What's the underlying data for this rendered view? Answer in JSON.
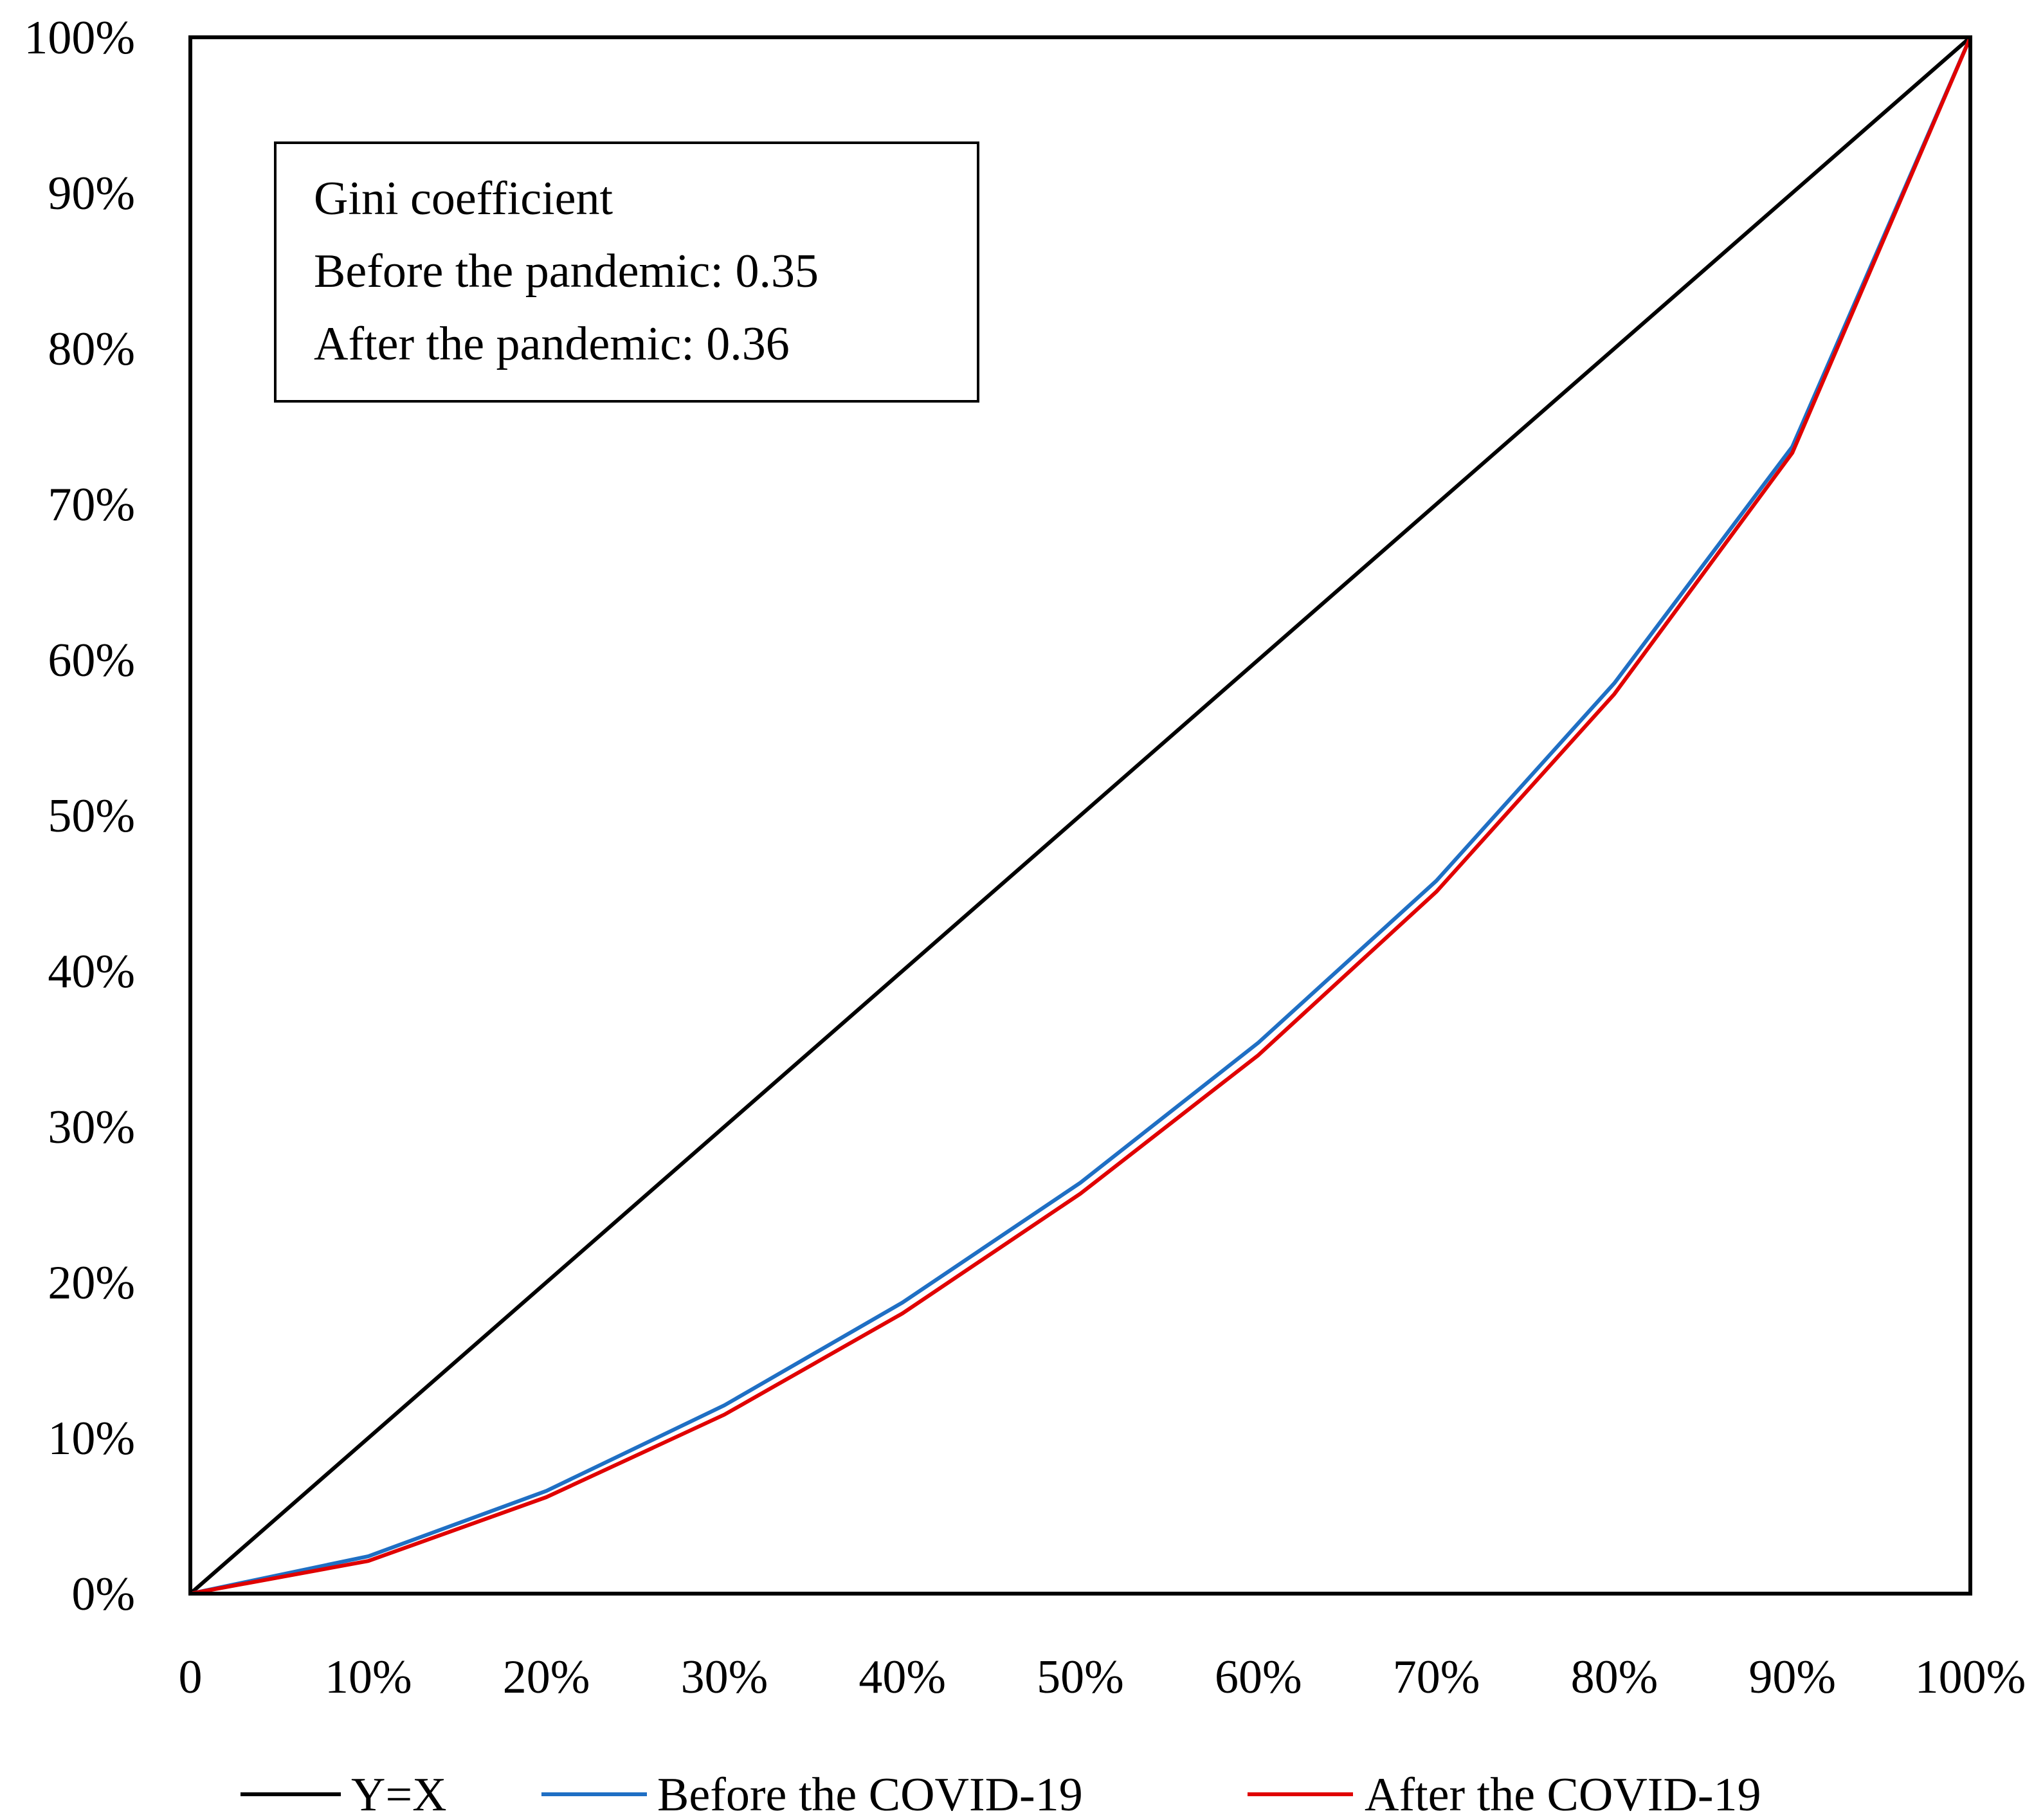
{
  "chart_data": {
    "type": "line",
    "title": "",
    "xlabel": "",
    "ylabel": "",
    "x": [
      0,
      0.1,
      0.2,
      0.3,
      0.4,
      0.5,
      0.6,
      0.7,
      0.8,
      0.9,
      1.0
    ],
    "x_tick_labels": [
      "0",
      "10%",
      "20%",
      "30%",
      "40%",
      "50%",
      "60%",
      "70%",
      "80%",
      "90%",
      "100%"
    ],
    "y_tick_labels": [
      "0%",
      "10%",
      "20%",
      "30%",
      "40%",
      "50%",
      "60%",
      "70%",
      "80%",
      "90%",
      "100%"
    ],
    "xlim": [
      0,
      1
    ],
    "ylim": [
      0,
      1
    ],
    "grid": false,
    "legend_position": "bottom",
    "series": [
      {
        "name": "Y=X",
        "color": "#000000",
        "values": [
          0,
          0.1,
          0.2,
          0.3,
          0.4,
          0.5,
          0.6,
          0.7,
          0.8,
          0.9,
          1.0
        ]
      },
      {
        "name": "Before the COVID-19",
        "color": "#1f6fc4",
        "values": [
          0,
          0.024,
          0.066,
          0.121,
          0.187,
          0.264,
          0.354,
          0.458,
          0.585,
          0.737,
          1.0
        ]
      },
      {
        "name": "After the COVID-19",
        "color": "#e00000",
        "values": [
          0,
          0.021,
          0.062,
          0.115,
          0.18,
          0.257,
          0.346,
          0.451,
          0.578,
          0.733,
          1.0
        ]
      }
    ],
    "annotation": {
      "lines": [
        "Gini coefficient",
        "Before the pandemic: 0.35",
        "After the pandemic: 0.36"
      ]
    }
  }
}
